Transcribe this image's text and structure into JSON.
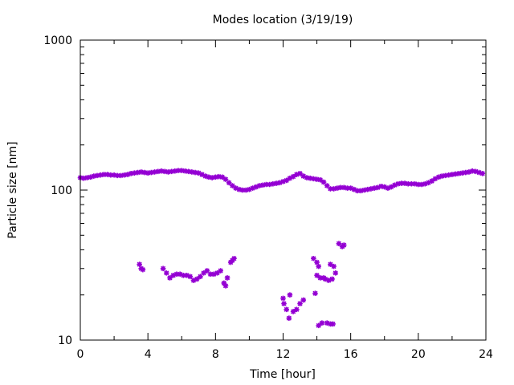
{
  "chart_data": {
    "type": "scatter",
    "title": "Modes location (3/19/19)",
    "xlabel": "Time [hour]",
    "ylabel": "Particle size [nm]",
    "xlim": [
      0,
      24
    ],
    "ylim": [
      10,
      1000
    ],
    "yscale": "log",
    "x_ticks": [
      "0",
      "4",
      "8",
      "12",
      "16",
      "20",
      "24"
    ],
    "y_ticks": [
      "10",
      "100",
      "1000"
    ],
    "grid": false,
    "marker_color": "#9400d3",
    "series": [
      {
        "values": [
          [
            0.0,
            121
          ],
          [
            0.2,
            120
          ],
          [
            0.4,
            121
          ],
          [
            0.6,
            122
          ],
          [
            0.8,
            124
          ],
          [
            1.0,
            125
          ],
          [
            1.2,
            126
          ],
          [
            1.4,
            127
          ],
          [
            1.6,
            127
          ],
          [
            1.8,
            126
          ],
          [
            2.0,
            126
          ],
          [
            2.2,
            125
          ],
          [
            2.4,
            125
          ],
          [
            2.6,
            126
          ],
          [
            2.8,
            127
          ],
          [
            3.0,
            129
          ],
          [
            3.2,
            130
          ],
          [
            3.4,
            131
          ],
          [
            3.6,
            132
          ],
          [
            3.8,
            131
          ],
          [
            4.0,
            130
          ],
          [
            4.2,
            131
          ],
          [
            4.4,
            132
          ],
          [
            4.6,
            133
          ],
          [
            4.8,
            134
          ],
          [
            5.0,
            133
          ],
          [
            5.2,
            132
          ],
          [
            5.4,
            133
          ],
          [
            5.6,
            134
          ],
          [
            5.8,
            135
          ],
          [
            6.0,
            135
          ],
          [
            6.2,
            134
          ],
          [
            6.4,
            133
          ],
          [
            6.6,
            132
          ],
          [
            6.8,
            131
          ],
          [
            7.0,
            130
          ],
          [
            7.2,
            127
          ],
          [
            7.4,
            124
          ],
          [
            7.6,
            122
          ],
          [
            7.8,
            121
          ],
          [
            8.0,
            122
          ],
          [
            8.2,
            123
          ],
          [
            8.4,
            122
          ],
          [
            8.6,
            118
          ],
          [
            8.8,
            112
          ],
          [
            9.0,
            107
          ],
          [
            9.2,
            103
          ],
          [
            9.4,
            101
          ],
          [
            9.6,
            100
          ],
          [
            9.8,
            100
          ],
          [
            10.0,
            101
          ],
          [
            10.2,
            103
          ],
          [
            10.4,
            105
          ],
          [
            10.6,
            107
          ],
          [
            10.8,
            108
          ],
          [
            11.0,
            109
          ],
          [
            11.2,
            109
          ],
          [
            11.4,
            110
          ],
          [
            11.6,
            111
          ],
          [
            11.8,
            112
          ],
          [
            12.0,
            114
          ],
          [
            12.2,
            116
          ],
          [
            12.4,
            120
          ],
          [
            12.6,
            123
          ],
          [
            12.8,
            127
          ],
          [
            13.0,
            129
          ],
          [
            13.2,
            124
          ],
          [
            13.4,
            121
          ],
          [
            13.6,
            120
          ],
          [
            13.8,
            119
          ],
          [
            14.0,
            118
          ],
          [
            14.2,
            117
          ],
          [
            14.4,
            113
          ],
          [
            14.6,
            107
          ],
          [
            14.8,
            102
          ],
          [
            15.0,
            102
          ],
          [
            15.2,
            103
          ],
          [
            15.4,
            104
          ],
          [
            15.6,
            104
          ],
          [
            15.8,
            103
          ],
          [
            16.0,
            103
          ],
          [
            16.2,
            101
          ],
          [
            16.4,
            99
          ],
          [
            16.6,
            99
          ],
          [
            16.8,
            100
          ],
          [
            17.0,
            101
          ],
          [
            17.2,
            102
          ],
          [
            17.4,
            103
          ],
          [
            17.6,
            104
          ],
          [
            17.8,
            106
          ],
          [
            18.0,
            105
          ],
          [
            18.2,
            103
          ],
          [
            18.4,
            105
          ],
          [
            18.6,
            108
          ],
          [
            18.8,
            110
          ],
          [
            19.0,
            111
          ],
          [
            19.2,
            111
          ],
          [
            19.4,
            110
          ],
          [
            19.6,
            110
          ],
          [
            19.8,
            110
          ],
          [
            20.0,
            109
          ],
          [
            20.2,
            109
          ],
          [
            20.4,
            110
          ],
          [
            20.6,
            112
          ],
          [
            20.8,
            115
          ],
          [
            21.0,
            119
          ],
          [
            21.2,
            122
          ],
          [
            21.4,
            124
          ],
          [
            21.6,
            125
          ],
          [
            21.8,
            126
          ],
          [
            22.0,
            127
          ],
          [
            22.2,
            128
          ],
          [
            22.4,
            129
          ],
          [
            22.6,
            130
          ],
          [
            22.8,
            131
          ],
          [
            23.0,
            132
          ],
          [
            23.2,
            134
          ],
          [
            23.4,
            133
          ],
          [
            23.6,
            131
          ],
          [
            23.8,
            129
          ],
          [
            3.5,
            32
          ],
          [
            3.6,
            30
          ],
          [
            3.7,
            29.5
          ],
          [
            4.9,
            30
          ],
          [
            5.1,
            28
          ],
          [
            5.3,
            26
          ],
          [
            5.5,
            27
          ],
          [
            5.7,
            27.5
          ],
          [
            5.9,
            27.5
          ],
          [
            6.1,
            27
          ],
          [
            6.3,
            27
          ],
          [
            6.5,
            26.5
          ],
          [
            6.7,
            25
          ],
          [
            6.9,
            25.5
          ],
          [
            7.1,
            26.5
          ],
          [
            7.3,
            28
          ],
          [
            7.5,
            29
          ],
          [
            7.7,
            27.5
          ],
          [
            7.9,
            27.5
          ],
          [
            8.1,
            28
          ],
          [
            8.3,
            29
          ],
          [
            8.5,
            24
          ],
          [
            8.6,
            23
          ],
          [
            8.7,
            26
          ],
          [
            8.9,
            33
          ],
          [
            9.0,
            34
          ],
          [
            9.1,
            35
          ],
          [
            12.0,
            19
          ],
          [
            12.05,
            17.5
          ],
          [
            12.2,
            16
          ],
          [
            12.35,
            14
          ],
          [
            12.4,
            20
          ],
          [
            12.6,
            15.5
          ],
          [
            12.8,
            16
          ],
          [
            13.0,
            17.5
          ],
          [
            13.2,
            18.5
          ],
          [
            13.8,
            35
          ],
          [
            14.0,
            33
          ],
          [
            14.1,
            31
          ],
          [
            13.9,
            20.5
          ],
          [
            14.0,
            27
          ],
          [
            14.2,
            26
          ],
          [
            14.4,
            26
          ],
          [
            14.5,
            25.5
          ],
          [
            14.7,
            25
          ],
          [
            14.9,
            25.5
          ],
          [
            14.8,
            32
          ],
          [
            15.0,
            31
          ],
          [
            15.1,
            28
          ],
          [
            15.3,
            44
          ],
          [
            15.5,
            42
          ],
          [
            15.6,
            43
          ],
          [
            14.1,
            12.5
          ],
          [
            14.3,
            13
          ],
          [
            14.6,
            13
          ],
          [
            14.8,
            12.8
          ],
          [
            14.95,
            12.8
          ]
        ]
      }
    ]
  }
}
